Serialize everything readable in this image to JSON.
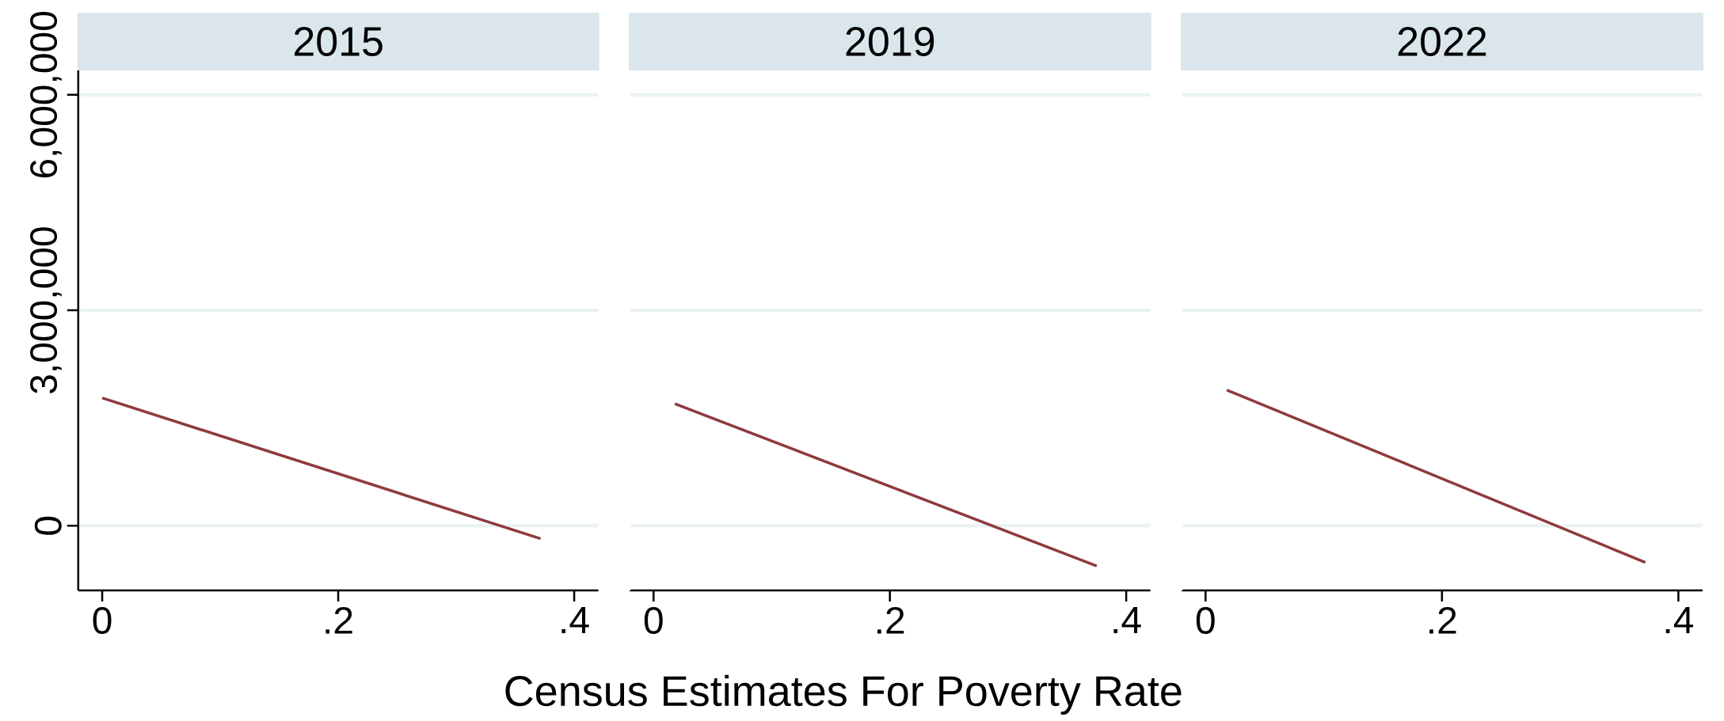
{
  "chart_data": [
    {
      "type": "line",
      "title": "2015",
      "x": [
        0,
        0.3715
      ],
      "values": [
        1780000,
        -180000
      ],
      "color": "#8f3a3e",
      "xlim": [
        -0.0203,
        0.4205
      ],
      "ylim": [
        -900000,
        6340000
      ],
      "xticks": [
        {
          "value": 0,
          "label": "0"
        },
        {
          "value": 0.2,
          "label": ".2"
        },
        {
          "value": 0.4,
          "label": ".4"
        }
      ],
      "yticks": [
        {
          "value": 0,
          "label": "0"
        },
        {
          "value": 3000000,
          "label": "3,000,000"
        },
        {
          "value": 6000000,
          "label": "6,000,000"
        }
      ],
      "grid": "y"
    },
    {
      "type": "line",
      "title": "2019",
      "xlabel": "Census Estimates For Poverty Rate",
      "x": [
        0.018,
        0.375
      ],
      "values": [
        1700000,
        -560000
      ],
      "color": "#8f3a3e",
      "xlim": [
        -0.0203,
        0.4205
      ],
      "ylim": [
        -900000,
        6340000
      ],
      "xticks": [
        {
          "value": 0,
          "label": "0"
        },
        {
          "value": 0.2,
          "label": ".2"
        },
        {
          "value": 0.4,
          "label": ".4"
        }
      ],
      "yticks": [
        {
          "value": 0,
          "label": null
        },
        {
          "value": 3000000,
          "label": null
        },
        {
          "value": 6000000,
          "label": null
        }
      ],
      "grid": "y",
      "tick_labels": "x"
    },
    {
      "type": "line",
      "title": "2022",
      "x": [
        0.018,
        0.372
      ],
      "values": [
        1890000,
        -510000
      ],
      "color": "#8f3a3e",
      "xlim": [
        -0.0203,
        0.4205
      ],
      "ylim": [
        -900000,
        6340000
      ],
      "xticks": [
        {
          "value": 0,
          "label": "0"
        },
        {
          "value": 0.2,
          "label": ".2"
        },
        {
          "value": 0.4,
          "label": ".4"
        }
      ],
      "yticks": [
        {
          "value": 0,
          "label": null
        },
        {
          "value": 3000000,
          "label": null
        },
        {
          "value": 6000000,
          "label": null
        }
      ],
      "grid": "y",
      "tick_labels": "x"
    }
  ]
}
